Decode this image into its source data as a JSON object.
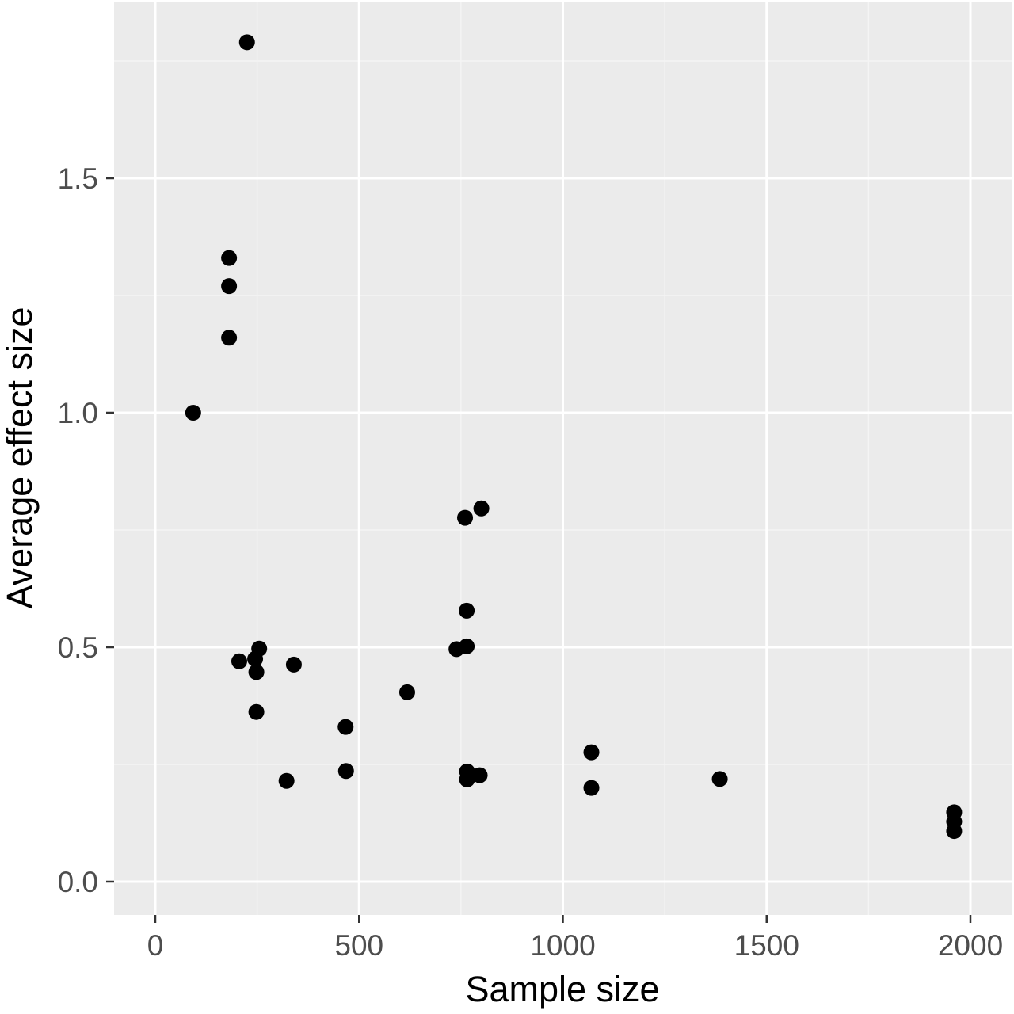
{
  "colors": {
    "panel_background": "#ebebeb",
    "major_grid": "#ffffff",
    "minor_grid": "#f4f4f4",
    "point": "#000000",
    "tick_label": "#4d4d4d",
    "axis_title": "#000000"
  },
  "chart_data": {
    "type": "scatter",
    "title": "",
    "xlabel": "Sample size",
    "ylabel": "Average effect size",
    "xlim": [
      -100,
      2100
    ],
    "ylim": [
      -0.07,
      1.88
    ],
    "x_ticks": [
      0,
      500,
      1000,
      1500,
      2000
    ],
    "x_tick_labels": [
      "0",
      "500",
      "1000",
      "1500",
      "2000"
    ],
    "y_ticks": [
      0.0,
      0.5,
      1.0,
      1.5
    ],
    "y_tick_labels": [
      "0.0",
      "0.5",
      "1.0",
      "1.5"
    ],
    "grid": true,
    "points": [
      {
        "x": 225,
        "y": 1.79
      },
      {
        "x": 181,
        "y": 1.33
      },
      {
        "x": 181,
        "y": 1.27
      },
      {
        "x": 181,
        "y": 1.16
      },
      {
        "x": 93,
        "y": 1.0
      },
      {
        "x": 206,
        "y": 0.47
      },
      {
        "x": 245,
        "y": 0.475
      },
      {
        "x": 248,
        "y": 0.447
      },
      {
        "x": 255,
        "y": 0.497
      },
      {
        "x": 340,
        "y": 0.463
      },
      {
        "x": 248,
        "y": 0.362
      },
      {
        "x": 322,
        "y": 0.215
      },
      {
        "x": 467,
        "y": 0.33
      },
      {
        "x": 468,
        "y": 0.236
      },
      {
        "x": 618,
        "y": 0.404
      },
      {
        "x": 739,
        "y": 0.496
      },
      {
        "x": 764,
        "y": 0.502
      },
      {
        "x": 764,
        "y": 0.578
      },
      {
        "x": 760,
        "y": 0.776
      },
      {
        "x": 800,
        "y": 0.796
      },
      {
        "x": 765,
        "y": 0.235
      },
      {
        "x": 765,
        "y": 0.218
      },
      {
        "x": 796,
        "y": 0.227
      },
      {
        "x": 1070,
        "y": 0.276
      },
      {
        "x": 1070,
        "y": 0.2
      },
      {
        "x": 1385,
        "y": 0.219
      },
      {
        "x": 1960,
        "y": 0.148
      },
      {
        "x": 1960,
        "y": 0.128
      },
      {
        "x": 1960,
        "y": 0.108
      }
    ]
  }
}
